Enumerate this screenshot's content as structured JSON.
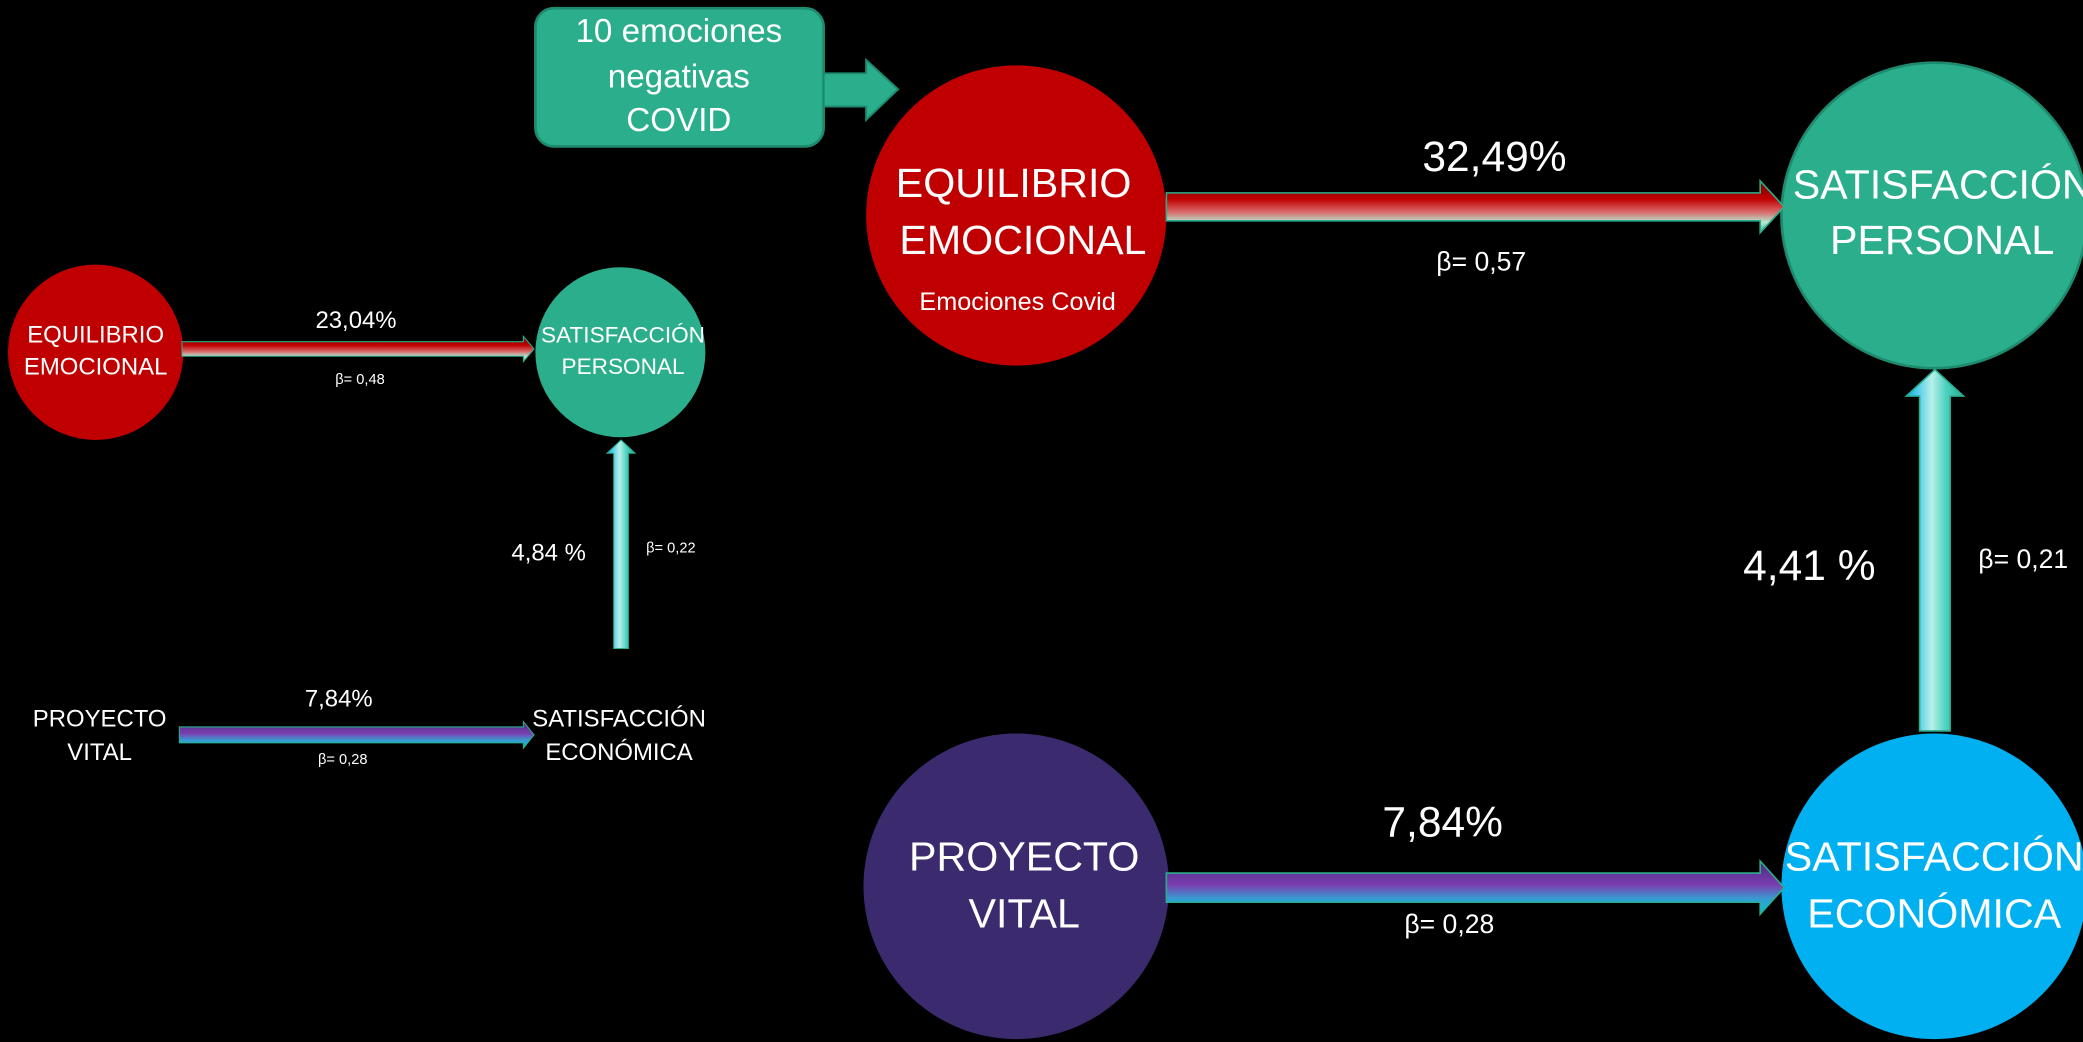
{
  "callout": {
    "lines": [
      "10 emociones",
      "negativas",
      "COVID"
    ]
  },
  "small": {
    "nodes": [
      {
        "lines": [
          "EQUILIBRIO",
          "EMOCIONAL"
        ]
      },
      {
        "lines": [
          "SATISFACCIÓN",
          "PERSONAL"
        ]
      },
      {
        "lines": [
          "PROYECTO",
          "VITAL"
        ]
      },
      {
        "lines": [
          "SATISFACCIÓN",
          "ECONÓMICA"
        ]
      }
    ],
    "edges": [
      {
        "percent": "23,04%",
        "beta": "β= 0,48"
      },
      {
        "percent": "4,84 %",
        "beta": "β= 0,22"
      },
      {
        "percent": "7,84%",
        "beta": "β= 0,28"
      }
    ]
  },
  "large": {
    "nodes": [
      {
        "lines": [
          "EQUILIBRIO",
          "EMOCIONAL"
        ],
        "sublabel": "Emociones Covid"
      },
      {
        "lines": [
          "SATISFACCIÓN",
          "PERSONAL"
        ]
      },
      {
        "lines": [
          "PROYECTO",
          "VITAL"
        ]
      },
      {
        "lines": [
          "SATISFACCIÓN",
          "ECONÓMICA"
        ]
      }
    ],
    "edges": [
      {
        "percent": "32,49%",
        "beta": "β= 0,57"
      },
      {
        "percent": "4,41 %",
        "beta": "β= 0,21"
      },
      {
        "percent": "7,84%",
        "beta": "β= 0,28"
      }
    ]
  }
}
